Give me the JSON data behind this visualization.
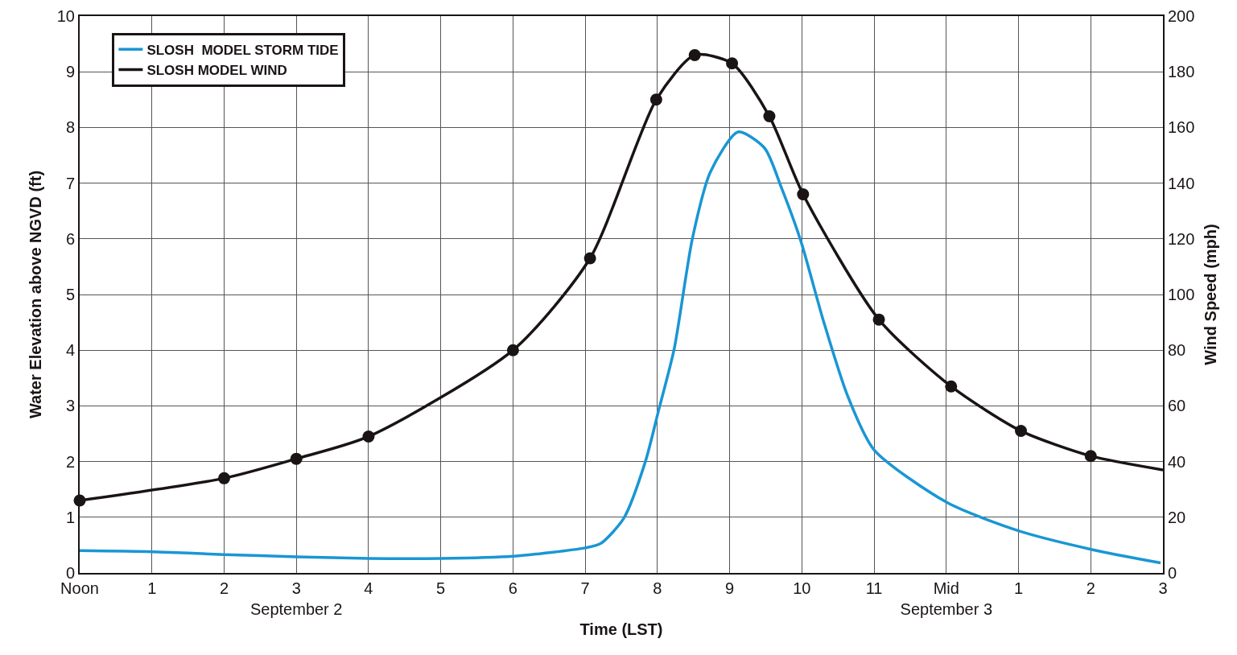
{
  "chart_data": {
    "type": "line",
    "xlabel": "Time (LST)",
    "ylabel": "Water Elevation above NGVD (ft)",
    "y2label": "Wind Speed (mph)",
    "xlim": [
      "--09-02T12:00",
      "--09-03T03:00"
    ],
    "xticks": [
      {
        "value": "--09-02T12:00",
        "label": "Noon"
      },
      {
        "value": "--09-02T13:00",
        "label": "1"
      },
      {
        "value": "--09-02T14:00",
        "label": "2"
      },
      {
        "value": "--09-02T15:00",
        "label": "3\nSeptember 2"
      },
      {
        "value": "--09-02T16:00",
        "label": "4"
      },
      {
        "value": "--09-02T17:00",
        "label": "5"
      },
      {
        "value": "--09-02T18:00",
        "label": "6"
      },
      {
        "value": "--09-02T19:00",
        "label": "7"
      },
      {
        "value": "--09-02T20:00",
        "label": "8"
      },
      {
        "value": "--09-02T21:00",
        "label": "9"
      },
      {
        "value": "--09-02T22:00",
        "label": "10"
      },
      {
        "value": "--09-02T23:00",
        "label": "11"
      },
      {
        "value": "--09-03T00:00",
        "label": "Mid\nSeptember 3"
      },
      {
        "value": "--09-03T01:00",
        "label": "1"
      },
      {
        "value": "--09-03T02:00",
        "label": "2"
      },
      {
        "value": "--09-03T03:00",
        "label": "3"
      }
    ],
    "ylim": [
      0,
      10
    ],
    "yticks": [
      0,
      1,
      2,
      3,
      4,
      5,
      6,
      7,
      8,
      9,
      10
    ],
    "y2lim": [
      0,
      200
    ],
    "y2ticks": [
      0,
      20,
      40,
      60,
      80,
      100,
      120,
      140,
      160,
      180,
      200
    ],
    "grid": true,
    "legend": "top left",
    "line_style": "solid",
    "series": [
      {
        "name": "SLOSH  MODEL STORM TIDE",
        "color": "#1a96d4",
        "marker": "none",
        "x": [
          "--09-02T12:00",
          "--09-02T13:00",
          "--09-02T14:00",
          "--09-02T15:00",
          "--09-02T16:00",
          "--09-02T17:00",
          "--09-02T18:00",
          "--09-02T19:00",
          "--09-02T19:13",
          "--09-02T19:32",
          "--09-02T19:50",
          "--09-02T20:01",
          "--09-02T20:14",
          "--09-02T20:29",
          "--09-02T20:44",
          "--09-02T21:07",
          "--09-02T21:29",
          "--09-02T21:43",
          "--09-02T21:59",
          "--09-02T22:18",
          "--09-02T22:38",
          "--09-02T23:00",
          "--09-03T00:01",
          "--09-03T01:01",
          "--09-03T02:01",
          "--09-03T02:58"
        ],
        "values": [
          0.4,
          0.38,
          0.33,
          0.29,
          0.26,
          0.26,
          0.3,
          0.45,
          0.53,
          0.98,
          2.0,
          2.92,
          4.03,
          6.0,
          7.2,
          7.92,
          7.63,
          6.92,
          5.97,
          4.52,
          3.18,
          2.21,
          1.26,
          0.75,
          0.42,
          0.18
        ]
      },
      {
        "name": "SLOSH MODEL WIND",
        "color": "#1a1414",
        "axis": "y2",
        "marker": "none",
        "x": [
          "--09-02T12:00",
          "--09-02T14:00",
          "--09-02T15:00",
          "--09-02T16:00",
          "--09-02T18:00",
          "--09-02T19:04",
          "--09-02T19:59",
          "--09-02T20:31",
          "--09-02T21:02",
          "--09-02T21:33",
          "--09-02T22:01",
          "--09-02T23:04",
          "--09-03T00:04",
          "--09-03T01:02",
          "--09-03T02:00",
          "--09-03T03:00"
        ],
        "values": [
          26,
          34,
          41,
          49,
          80,
          113,
          170,
          186,
          183,
          164,
          136,
          91,
          67,
          51,
          42,
          37
        ]
      },
      {
        "type": "scatter",
        "color": "#1a1414",
        "axis": "y2",
        "marker": "circle",
        "x": [
          "--09-02T12:00",
          "--09-02T14:00",
          "--09-02T15:00",
          "--09-02T16:00",
          "--09-02T18:00",
          "--09-02T19:04",
          "--09-02T19:59",
          "--09-02T20:31",
          "--09-02T21:02",
          "--09-02T21:33",
          "--09-02T22:01",
          "--09-02T23:04",
          "--09-03T00:04",
          "--09-03T01:02",
          "--09-03T02:00"
        ],
        "values": [
          26,
          34,
          41,
          49,
          80,
          113,
          170,
          186,
          183,
          164,
          136,
          91,
          67,
          51,
          42
        ]
      }
    ]
  }
}
